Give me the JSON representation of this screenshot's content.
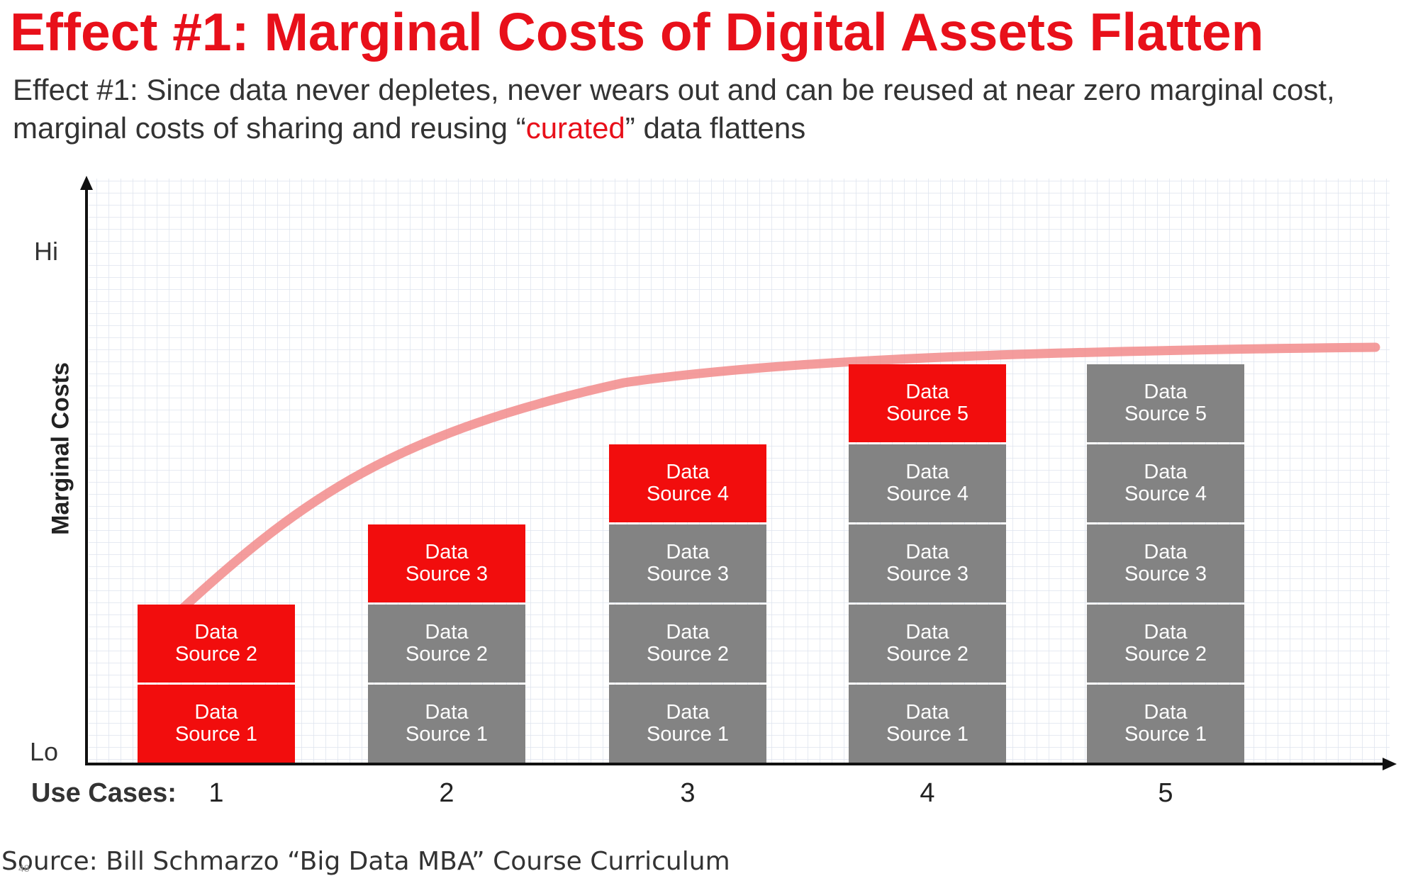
{
  "title": "Effect #1: Marginal Costs of Digital Assets Flatten",
  "subtitle": {
    "line1": "Effect #1: Since data never depletes, never wears out and can be reused at near zero marginal cost,",
    "line2_prefix": "marginal costs of sharing and reusing “",
    "line2_accent": "curated",
    "line2_suffix": "” data flattens"
  },
  "axis": {
    "y_label": "Marginal Costs",
    "y_hi": "Hi",
    "y_lo": "Lo",
    "x_label": "Use Cases:"
  },
  "use_cases": [
    {
      "label": "1",
      "blocks": [
        {
          "word": "Data",
          "name": "Source 1",
          "state": "new"
        },
        {
          "word": "Data",
          "name": "Source 2",
          "state": "new"
        }
      ]
    },
    {
      "label": "2",
      "blocks": [
        {
          "word": "Data",
          "name": "Source 1",
          "state": "reused"
        },
        {
          "word": "Data",
          "name": "Source 2",
          "state": "reused"
        },
        {
          "word": "Data",
          "name": "Source 3",
          "state": "new"
        }
      ]
    },
    {
      "label": "3",
      "blocks": [
        {
          "word": "Data",
          "name": "Source 1",
          "state": "reused"
        },
        {
          "word": "Data",
          "name": "Source 2",
          "state": "reused"
        },
        {
          "word": "Data",
          "name": "Source 3",
          "state": "reused"
        },
        {
          "word": "Data",
          "name": "Source 4",
          "state": "new"
        }
      ]
    },
    {
      "label": "4",
      "blocks": [
        {
          "word": "Data",
          "name": "Source 1",
          "state": "reused"
        },
        {
          "word": "Data",
          "name": "Source 2",
          "state": "reused"
        },
        {
          "word": "Data",
          "name": "Source 3",
          "state": "reused"
        },
        {
          "word": "Data",
          "name": "Source 4",
          "state": "reused"
        },
        {
          "word": "Data",
          "name": "Source 5",
          "state": "new"
        }
      ]
    },
    {
      "label": "5",
      "blocks": [
        {
          "word": "Data",
          "name": "Source 1",
          "state": "reused"
        },
        {
          "word": "Data",
          "name": "Source 2",
          "state": "reused"
        },
        {
          "word": "Data",
          "name": "Source 3",
          "state": "reused"
        },
        {
          "word": "Data",
          "name": "Source 4",
          "state": "reused"
        },
        {
          "word": "Data",
          "name": "Source 5",
          "state": "reused"
        }
      ]
    }
  ],
  "colors": {
    "new": "#f20d0d",
    "reused": "#838383",
    "curve": "#f28b8b",
    "title": "#e8101a"
  },
  "source": "Source: Bill Schmarzo “Big Data MBA” Course Curriculum",
  "page_number": "48"
}
